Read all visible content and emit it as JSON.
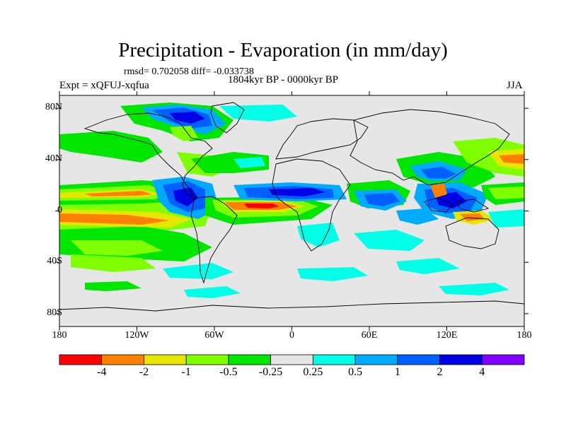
{
  "title": "Precipitation - Evaporation (in mm/day)",
  "stats": "rmsd= 0.702058 diff= -0.033738",
  "period": "1804kyr BP - 0000kyr BP",
  "experiment": "Expt = xQFUJ-xqfua",
  "season": "JJA",
  "map": {
    "x_ticks": [
      {
        "lon": -180,
        "label": "180"
      },
      {
        "lon": -120,
        "label": "120W"
      },
      {
        "lon": -60,
        "label": "60W"
      },
      {
        "lon": 0,
        "label": "0"
      },
      {
        "lon": 60,
        "label": "60E"
      },
      {
        "lon": 120,
        "label": "120E"
      },
      {
        "lon": 180,
        "label": "180"
      }
    ],
    "y_ticks": [
      {
        "lat": 80,
        "label": "80N"
      },
      {
        "lat": 40,
        "label": "40N"
      },
      {
        "lat": 0,
        "label": "0"
      },
      {
        "lat": -40,
        "label": "40S"
      },
      {
        "lat": -80,
        "label": "80S"
      }
    ],
    "background_color": "#e6e6e6"
  },
  "colorbar": {
    "colors": [
      "#ff0000",
      "#ff8000",
      "#e6e600",
      "#80ff00",
      "#00e600",
      "#e6e6e6",
      "#00ffe6",
      "#00aaff",
      "#0060ff",
      "#0000e6",
      "#8000ff"
    ],
    "labels": [
      "-4",
      "-2",
      "-1",
      "-0.5",
      "-0.25",
      "0.25",
      "0.5",
      "1",
      "2",
      "4"
    ]
  }
}
